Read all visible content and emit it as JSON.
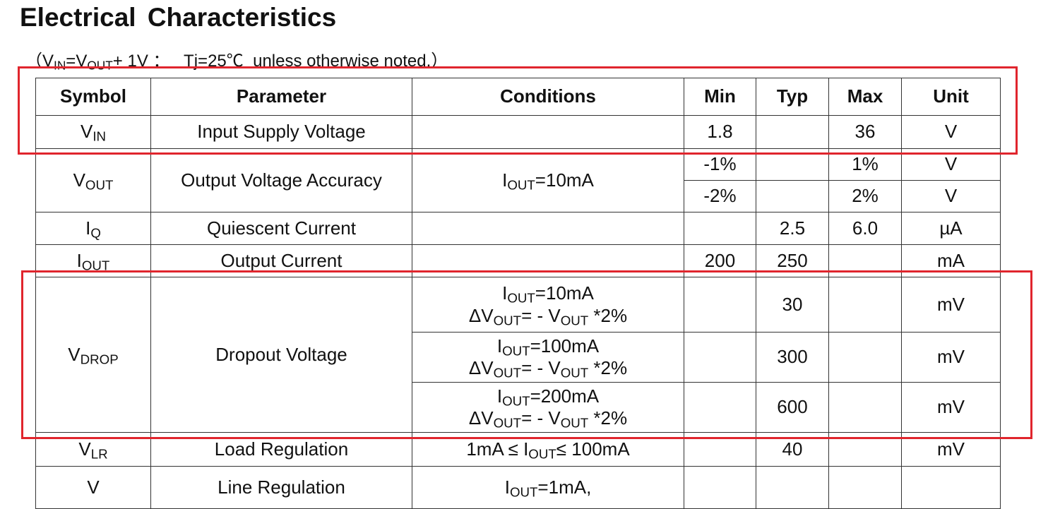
{
  "title": "Electrical  Characteristics",
  "subtitle": "（V_{IN}=V_{OUT}+ 1V ：   Tj=25℃  unless otherwise noted.）",
  "highlight_color": "#e0252d",
  "table": {
    "headers": [
      "Symbol",
      "Parameter",
      "Conditions",
      "Min",
      "Typ",
      "Max",
      "Unit"
    ],
    "groups": [
      {
        "symbol": "V_{IN}",
        "parameter": "Input Supply Voltage",
        "rows": [
          {
            "conditions": "",
            "min": "1.8",
            "typ": "",
            "max": "36",
            "unit": "V"
          }
        ]
      },
      {
        "symbol": "V_{OUT}",
        "parameter": "Output Voltage Accuracy",
        "conditions": "I_{OUT}=10mA",
        "rows": [
          {
            "min": "-1%",
            "typ": "",
            "max": "1%",
            "unit": "V"
          },
          {
            "min": "-2%",
            "typ": "",
            "max": "2%",
            "unit": "V"
          }
        ]
      },
      {
        "symbol": "I_{Q}",
        "parameter": "Quiescent Current",
        "rows": [
          {
            "conditions": "",
            "min": "",
            "typ": "2.5",
            "max": "6.0",
            "unit": "µA"
          }
        ]
      },
      {
        "symbol": "I_{OUT}",
        "parameter": "Output Current",
        "rows": [
          {
            "conditions": "",
            "min": "200",
            "typ": "250",
            "max": "",
            "unit": "mA"
          }
        ]
      },
      {
        "symbol": "V_{DROP}",
        "parameter": "Dropout Voltage",
        "rows": [
          {
            "conditions": [
              "I_{OUT}=10mA",
              "ΔV_{OUT}= - V_{OUT} *2%"
            ],
            "min": "",
            "typ": "30",
            "max": "",
            "unit": "mV"
          },
          {
            "conditions": [
              "I_{OUT}=100mA",
              "ΔV_{OUT}= - V_{OUT} *2%"
            ],
            "min": "",
            "typ": "300",
            "max": "",
            "unit": "mV"
          },
          {
            "conditions": [
              "I_{OUT}=200mA",
              "ΔV_{OUT}= - V_{OUT} *2%"
            ],
            "min": "",
            "typ": "600",
            "max": "",
            "unit": "mV"
          }
        ]
      },
      {
        "symbol": "V_{LR}",
        "parameter": "Load Regulation",
        "rows": [
          {
            "conditions": "1mA ≤ I_{OUT}≤ 100mA",
            "min": "",
            "typ": "40",
            "max": "",
            "unit": "mV"
          }
        ]
      },
      {
        "symbol": "V",
        "parameter": "Line Regulation",
        "rows": [
          {
            "conditions": [
              "I_{OUT}=1mA,"
            ],
            "min": "",
            "typ": "",
            "max": "",
            "unit": ""
          }
        ]
      }
    ]
  }
}
